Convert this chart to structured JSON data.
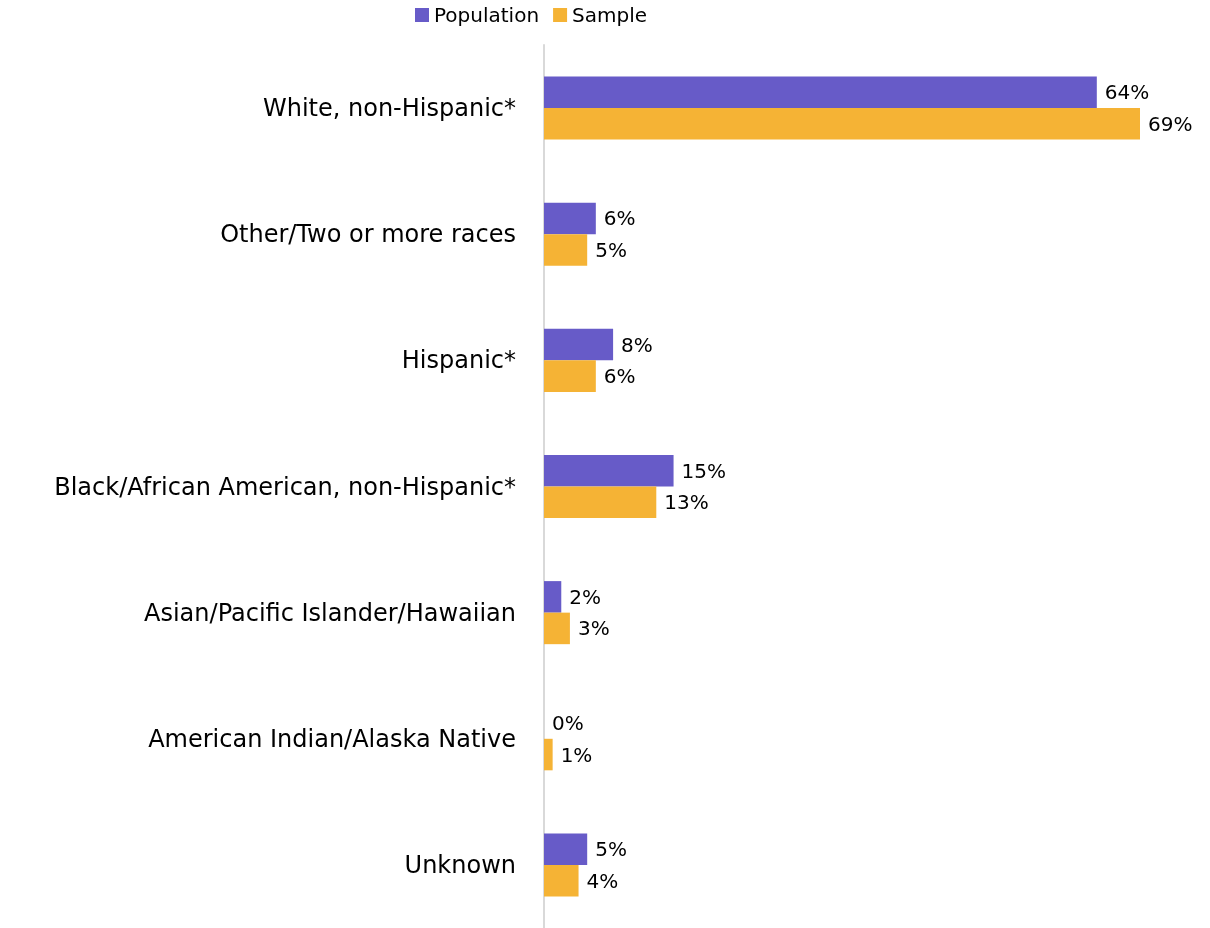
{
  "chart_data": {
    "type": "bar",
    "orientation": "horizontal",
    "categories": [
      "White, non-Hispanic*",
      "Other/Two or more races",
      "Hispanic*",
      "Black/African American, non-Hispanic*",
      "Asian/Pacific Islander/Hawaiian",
      "American Indian/Alaska Native",
      "Unknown"
    ],
    "series": [
      {
        "name": "Population",
        "color": "#675bc8",
        "values": [
          64,
          6,
          8,
          15,
          2,
          0,
          5
        ],
        "value_labels": [
          "64%",
          "6%",
          "8%",
          "15%",
          "2%",
          "0%",
          "5%"
        ]
      },
      {
        "name": "Sample",
        "color": "#f5b335",
        "values": [
          69,
          5,
          6,
          13,
          3,
          1,
          4
        ],
        "value_labels": [
          "69%",
          "5%",
          "6%",
          "13%",
          "3%",
          "1%",
          "4%"
        ]
      }
    ],
    "legend": "top"
  }
}
